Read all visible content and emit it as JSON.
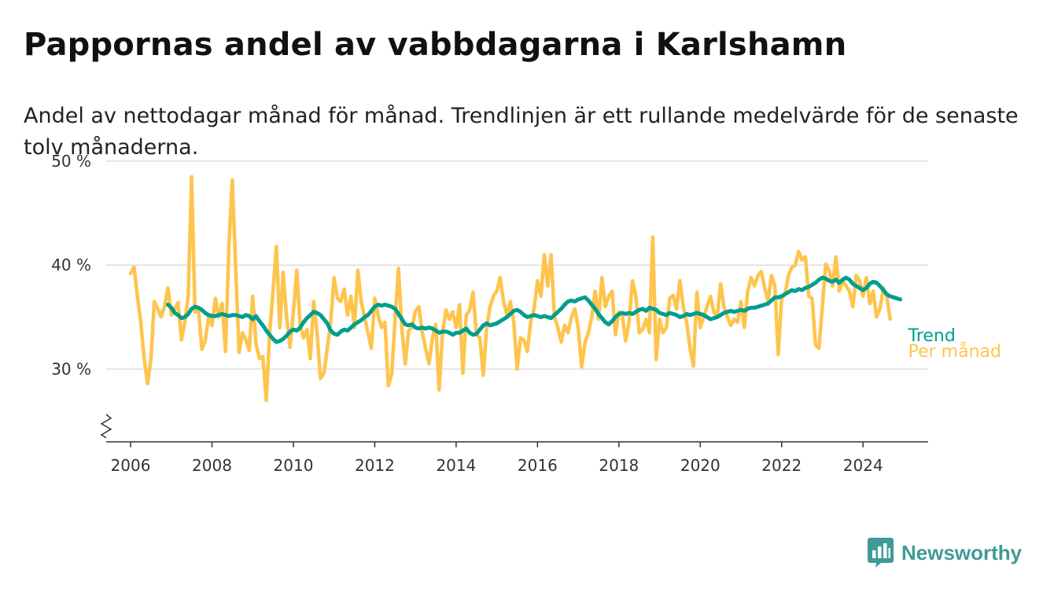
{
  "header": {
    "title": "Pappornas andel av vabbdagarna i Karlshamn",
    "subtitle": "Andel av nettodagar månad för månad. Trendlinjen är ett rullande medelvärde för de senaste tolv månaderna."
  },
  "brand": {
    "name": "Newsworthy",
    "color": "#3e9b96"
  },
  "colors": {
    "trend": "#009e8e",
    "monthly": "#ffc44d",
    "grid": "#dddddd",
    "axis": "#333333"
  },
  "chart_data": {
    "type": "line",
    "title": "Pappornas andel av vabbdagarna i Karlshamn",
    "xlabel": "",
    "ylabel": "",
    "xlim": [
      2005.4,
      2025.6
    ],
    "ylim": [
      23,
      50
    ],
    "y_ticks": [
      {
        "value": 50,
        "label": "50 %"
      },
      {
        "value": 40,
        "label": "40 %"
      },
      {
        "value": 30,
        "label": "30 %"
      }
    ],
    "x_ticks": [
      {
        "value": 2006,
        "label": "2006"
      },
      {
        "value": 2008,
        "label": "2008"
      },
      {
        "value": 2010,
        "label": "2010"
      },
      {
        "value": 2012,
        "label": "2012"
      },
      {
        "value": 2014,
        "label": "2014"
      },
      {
        "value": 2016,
        "label": "2016"
      },
      {
        "value": 2018,
        "label": "2018"
      },
      {
        "value": 2020,
        "label": "2020"
      },
      {
        "value": 2022,
        "label": "2022"
      },
      {
        "value": 2024,
        "label": "2024"
      }
    ],
    "axis_break": true,
    "grid": true,
    "series": [
      {
        "name": "Per månad",
        "label": "Per månad",
        "color": "#ffc44d",
        "x_start": 2006.0,
        "step": 0.08333,
        "values": [
          39.2,
          39.8,
          37.0,
          34.5,
          31.0,
          28.6,
          31.0,
          36.5,
          35.8,
          35.0,
          36.0,
          37.8,
          35.2,
          35.8,
          36.4,
          32.8,
          34.5,
          37.0,
          48.5,
          35.5,
          35.8,
          31.9,
          32.7,
          35.0,
          34.2,
          36.8,
          35.0,
          36.3,
          31.7,
          42.0,
          48.2,
          39.5,
          31.6,
          33.5,
          32.8,
          31.8,
          37.0,
          32.4,
          31.0,
          31.2,
          27.0,
          33.5,
          37.5,
          41.8,
          34.0,
          39.3,
          35.0,
          32.1,
          35.5,
          39.5,
          34.2,
          33.0,
          33.8,
          31.0,
          36.5,
          33.5,
          29.1,
          29.6,
          32.0,
          34.5,
          38.8,
          36.8,
          36.5,
          37.7,
          35.2,
          37.0,
          34.0,
          39.5,
          36.5,
          35.0,
          33.5,
          32.0,
          36.8,
          35.2,
          34.0,
          34.5,
          28.4,
          29.5,
          34.8,
          39.7,
          33.8,
          30.5,
          33.7,
          34.0,
          35.6,
          36.0,
          33.5,
          32.0,
          30.5,
          33.0,
          34.3,
          28.0,
          33.5,
          35.7,
          34.8,
          35.5,
          34.0,
          36.2,
          29.6,
          35.2,
          35.7,
          37.4,
          33.3,
          33.0,
          29.4,
          34.0,
          36.0,
          37.0,
          37.5,
          38.8,
          36.5,
          35.2,
          36.5,
          34.5,
          30.0,
          33.0,
          32.8,
          31.7,
          34.5,
          35.8,
          38.5,
          37.0,
          41.0,
          38.0,
          41.0,
          35.0,
          34.0,
          32.6,
          34.2,
          33.5,
          35.0,
          35.8,
          34.0,
          30.2,
          32.5,
          33.5,
          35.0,
          37.5,
          34.8,
          38.8,
          36.0,
          37.0,
          37.5,
          33.3,
          35.5,
          35.2,
          32.7,
          34.5,
          38.5,
          37.0,
          33.5,
          33.8,
          34.8,
          33.5,
          42.7,
          30.9,
          34.8,
          33.5,
          34.0,
          36.8,
          37.1,
          35.8,
          38.5,
          36.0,
          34.5,
          32.0,
          30.3,
          37.4,
          34.0,
          35.0,
          36.0,
          37.0,
          35.5,
          35.0,
          38.2,
          36.0,
          35.0,
          34.2,
          34.8,
          34.5,
          36.5,
          34.0,
          37.5,
          38.8,
          38.0,
          39.0,
          39.4,
          37.8,
          36.5,
          39.0,
          38.0,
          31.4,
          36.8,
          37.2,
          39.0,
          39.8,
          40.0,
          41.3,
          40.5,
          40.8,
          37.0,
          36.8,
          32.3,
          32.0,
          36.0,
          40.1,
          39.5,
          38.0,
          40.8,
          37.5,
          38.5,
          38.0,
          37.5,
          36.0,
          39.0,
          38.5,
          37.0,
          38.8,
          36.3,
          37.5,
          35.0,
          35.8,
          37.8,
          37.0,
          34.8
        ]
      },
      {
        "name": "Trend",
        "label": "Trend",
        "color": "#009e8e",
        "x_start": 2006.9167,
        "step": 0.08333,
        "values": [
          36.2,
          35.9,
          35.4,
          35.2,
          34.9,
          35.0,
          35.3,
          35.8,
          36.0,
          35.9,
          35.7,
          35.4,
          35.2,
          35.1,
          35.1,
          35.2,
          35.3,
          35.2,
          35.1,
          35.2,
          35.2,
          35.1,
          35.0,
          35.2,
          35.1,
          34.8,
          35.1,
          34.6,
          34.2,
          33.7,
          33.3,
          32.9,
          32.6,
          32.7,
          32.9,
          33.2,
          33.6,
          33.8,
          33.7,
          34.0,
          34.5,
          34.9,
          35.2,
          35.5,
          35.4,
          35.2,
          34.8,
          34.4,
          33.7,
          33.4,
          33.3,
          33.6,
          33.8,
          33.7,
          34.0,
          34.3,
          34.5,
          34.7,
          35.0,
          35.2,
          35.6,
          36.0,
          36.2,
          36.1,
          36.2,
          36.1,
          36.0,
          35.8,
          35.3,
          34.8,
          34.3,
          34.2,
          34.3,
          34.0,
          33.9,
          34.0,
          33.9,
          34.0,
          33.9,
          33.7,
          33.5,
          33.6,
          33.6,
          33.5,
          33.3,
          33.5,
          33.5,
          33.7,
          33.9,
          33.5,
          33.3,
          33.4,
          33.8,
          34.2,
          34.4,
          34.2,
          34.3,
          34.4,
          34.6,
          34.8,
          35.0,
          35.3,
          35.6,
          35.7,
          35.5,
          35.2,
          35.0,
          35.1,
          35.2,
          35.1,
          35.0,
          35.1,
          35.0,
          34.9,
          35.2,
          35.5,
          35.8,
          36.2,
          36.5,
          36.6,
          36.5,
          36.7,
          36.8,
          36.9,
          36.6,
          36.2,
          35.8,
          35.3,
          34.9,
          34.5,
          34.3,
          34.6,
          35.0,
          35.3,
          35.4,
          35.3,
          35.4,
          35.3,
          35.5,
          35.7,
          35.8,
          35.6,
          35.9,
          35.8,
          35.7,
          35.4,
          35.3,
          35.2,
          35.4,
          35.3,
          35.2,
          35.0,
          35.1,
          35.3,
          35.2,
          35.3,
          35.4,
          35.3,
          35.2,
          35.0,
          34.8,
          34.9,
          35.0,
          35.2,
          35.4,
          35.5,
          35.6,
          35.5,
          35.6,
          35.7,
          35.6,
          35.8,
          35.9,
          35.9,
          36.0,
          36.1,
          36.2,
          36.3,
          36.6,
          36.9,
          36.9,
          37.0,
          37.2,
          37.4,
          37.6,
          37.5,
          37.7,
          37.6,
          37.8,
          37.9,
          38.1,
          38.3,
          38.6,
          38.8,
          38.7,
          38.5,
          38.4,
          38.6,
          38.3,
          38.6,
          38.8,
          38.6,
          38.2,
          38.0,
          37.8,
          37.6,
          37.8,
          38.2,
          38.4,
          38.3,
          38.0,
          37.6,
          37.2,
          37.0,
          36.9,
          36.8,
          36.7
        ]
      }
    ]
  }
}
